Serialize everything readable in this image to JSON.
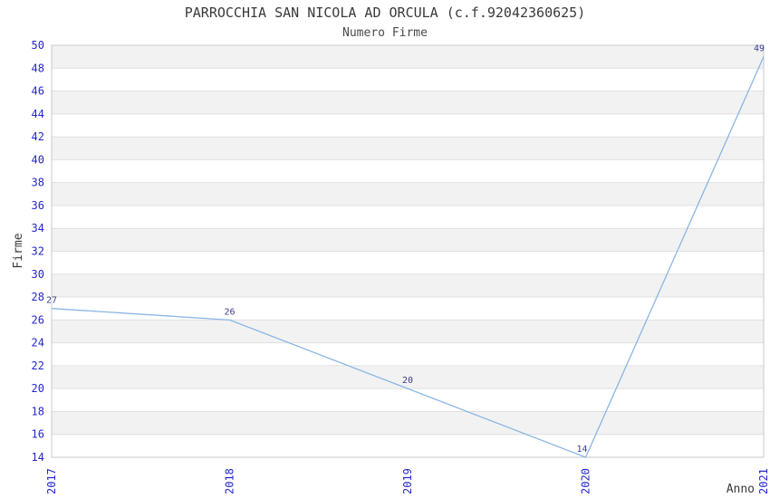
{
  "chart_data": {
    "type": "line",
    "title": "PARROCCHIA SAN NICOLA AD ORCULA (c.f.92042360625)",
    "subtitle": "Numero Firme",
    "xlabel": "Anno",
    "ylabel": "Firme",
    "x": [
      "2017",
      "2018",
      "2019",
      "2020",
      "2021"
    ],
    "series": [
      {
        "name": "Numero Firme",
        "values": [
          27,
          26,
          20,
          14,
          49
        ]
      }
    ],
    "data_labels": [
      "27",
      "26",
      "20",
      "14",
      "49"
    ],
    "data_labels_shown": true,
    "ylim": [
      14,
      50
    ],
    "ytick_step": 2,
    "yticks": [
      14,
      16,
      18,
      20,
      22,
      24,
      26,
      28,
      30,
      32,
      34,
      36,
      38,
      40,
      42,
      44,
      46,
      48,
      50
    ],
    "grid": "horizontal-lines-with-alternating-bands",
    "legend_position": "none",
    "colors": {
      "line": "#8ab6e6",
      "axis_tick_labels": "#2626cc",
      "data_labels": "#3c3c8c",
      "title_text": "#3a3a3a",
      "subtitle_text": "#4a4a4a",
      "axis_titles": "#3a3a3a",
      "band_fill": "#f2f2f2",
      "grid_line": "#e0e0e0",
      "plot_border": "#c8c8c8",
      "background": "#ffffff"
    }
  }
}
